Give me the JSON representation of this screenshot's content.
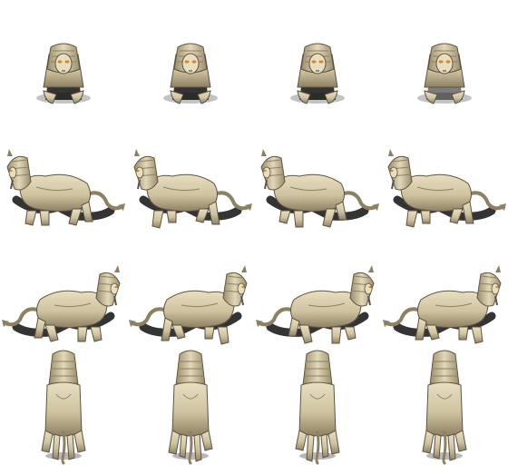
{
  "sprite_sheet": {
    "subject": "sphinx",
    "palette": {
      "stone": "#cfc3a0",
      "stone_light": "#e8dfc2",
      "stone_dark": "#8e8163",
      "stone_deep": "#5e5441",
      "eye": "#d88a2a",
      "shadow": "#111111",
      "background": "#ffffff"
    },
    "rows": [
      {
        "direction": "front",
        "frames": 4
      },
      {
        "direction": "left",
        "frames": 4
      },
      {
        "direction": "right",
        "frames": 4
      },
      {
        "direction": "back",
        "frames": 4
      }
    ]
  }
}
